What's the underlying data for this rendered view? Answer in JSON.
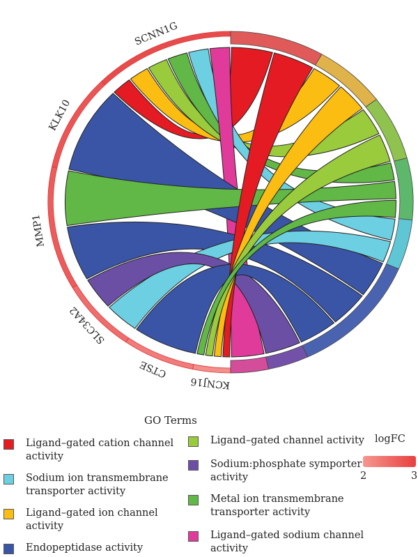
{
  "chart_data": {
    "type": "chord",
    "genes": [
      {
        "name": "SCNN1G",
        "logFC": 3.0,
        "color": "#e74c4c"
      },
      {
        "name": "KLK10",
        "logFC": 2.9,
        "color": "#ea5656"
      },
      {
        "name": "MMP1",
        "logFC": 2.8,
        "color": "#eb5d5d"
      },
      {
        "name": "SLC34A2",
        "logFC": 2.6,
        "color": "#ee6e6e"
      },
      {
        "name": "CTSE",
        "logFC": 2.4,
        "color": "#f07c7b"
      },
      {
        "name": "KCNJ16",
        "logFC": 2.2,
        "color": "#f3908b"
      }
    ],
    "go_terms": [
      {
        "name": "Ligand–gated cation channel activity",
        "color": "#e41b22"
      },
      {
        "name": "Sodium ion transmembrane transporter activity",
        "color": "#6dd0e2"
      },
      {
        "name": "Ligand–gated ion channel activity",
        "color": "#fcbd13"
      },
      {
        "name": "Endopeptidase activity",
        "color": "#3a55a5"
      },
      {
        "name": "Ligand–gated channel activity",
        "color": "#9acb3c"
      },
      {
        "name": "Sodium:phosphate symporter activity",
        "color": "#6b4fa4"
      },
      {
        "name": "Metal ion transmembrane transporter activity",
        "color": "#62b846"
      },
      {
        "name": "Ligand–gated sodium channel activity",
        "color": "#e03b9b"
      }
    ],
    "links": [
      [
        "SCNN1G",
        "Ligand–gated cation channel activity"
      ],
      [
        "SCNN1G",
        "Ligand–gated ion channel activity"
      ],
      [
        "SCNN1G",
        "Ligand–gated channel activity"
      ],
      [
        "SCNN1G",
        "Metal ion transmembrane transporter activity"
      ],
      [
        "SCNN1G",
        "Sodium ion transmembrane transporter activity"
      ],
      [
        "SCNN1G",
        "Ligand–gated sodium channel activity"
      ],
      [
        "KLK10",
        "Endopeptidase activity"
      ],
      [
        "MMP1",
        "Endopeptidase activity"
      ],
      [
        "MMP1",
        "Metal ion transmembrane transporter activity"
      ],
      [
        "SLC34A2",
        "Sodium ion transmembrane transporter activity"
      ],
      [
        "SLC34A2",
        "Sodium:phosphate symporter activity"
      ],
      [
        "CTSE",
        "Endopeptidase activity"
      ],
      [
        "KCNJ16",
        "Ligand–gated cation channel activity"
      ],
      [
        "KCNJ16",
        "Ligand–gated ion channel activity"
      ],
      [
        "KCNJ16",
        "Ligand–gated channel activity"
      ],
      [
        "KCNJ16",
        "Metal ion transmembrane transporter activity"
      ]
    ],
    "legend": {
      "title": "GO Terms",
      "items": [
        [
          "Ligand–gated cation channel",
          "activity"
        ],
        [
          "Sodium ion transmembrane",
          "transporter activity"
        ],
        [
          "Ligand–gated ion channel",
          "activity"
        ],
        [
          "Endopeptidase activity"
        ],
        [
          "Ligand–gated channel activity"
        ],
        [
          "Sodium:phosphate symporter",
          "activity"
        ],
        [
          "Metal ion transmembrane",
          "transporter activity"
        ],
        [
          "Ligand–gated sodium channel",
          "activity"
        ]
      ]
    },
    "colorbar": {
      "title": "logFC",
      "min": 2,
      "max": 3,
      "min_label": "2",
      "max_label": "3",
      "low_color": "#f5978f",
      "high_color": "#e8403f"
    }
  }
}
